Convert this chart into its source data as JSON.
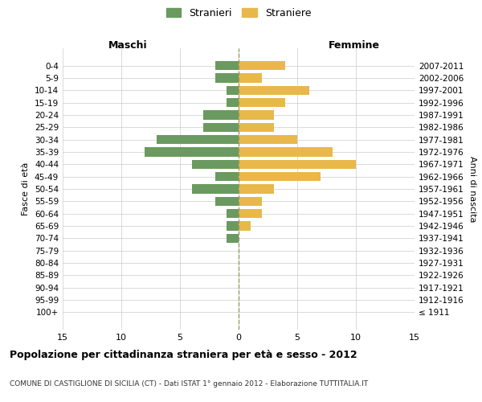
{
  "age_groups": [
    "100+",
    "95-99",
    "90-94",
    "85-89",
    "80-84",
    "75-79",
    "70-74",
    "65-69",
    "60-64",
    "55-59",
    "50-54",
    "45-49",
    "40-44",
    "35-39",
    "30-34",
    "25-29",
    "20-24",
    "15-19",
    "10-14",
    "5-9",
    "0-4"
  ],
  "birth_years": [
    "≤ 1911",
    "1912-1916",
    "1917-1921",
    "1922-1926",
    "1927-1931",
    "1932-1936",
    "1937-1941",
    "1942-1946",
    "1947-1951",
    "1952-1956",
    "1957-1961",
    "1962-1966",
    "1967-1971",
    "1972-1976",
    "1977-1981",
    "1982-1986",
    "1987-1991",
    "1992-1996",
    "1997-2001",
    "2002-2006",
    "2007-2011"
  ],
  "males": [
    0,
    0,
    0,
    0,
    0,
    0,
    1,
    1,
    1,
    2,
    4,
    2,
    4,
    8,
    7,
    3,
    3,
    1,
    1,
    2,
    2
  ],
  "females": [
    0,
    0,
    0,
    0,
    0,
    0,
    0,
    1,
    2,
    2,
    3,
    7,
    10,
    8,
    5,
    3,
    3,
    4,
    6,
    2,
    4
  ],
  "male_color": "#6a9a5f",
  "female_color": "#e8b84b",
  "background_color": "#ffffff",
  "grid_color": "#cccccc",
  "dashed_line_color": "#999966",
  "title": "Popolazione per cittadinanza straniera per età e sesso - 2012",
  "subtitle": "COMUNE DI CASTIGLIONE DI SICILIA (CT) - Dati ISTAT 1° gennaio 2012 - Elaborazione TUTTITALIA.IT",
  "left_label": "Maschi",
  "right_label": "Femmine",
  "y_left_label": "Fasce di età",
  "y_right_label": "Anni di nascita",
  "legend_male": "Stranieri",
  "legend_female": "Straniere",
  "xlim": 15,
  "xticks": [
    15,
    10,
    5,
    0,
    5,
    10,
    15
  ]
}
